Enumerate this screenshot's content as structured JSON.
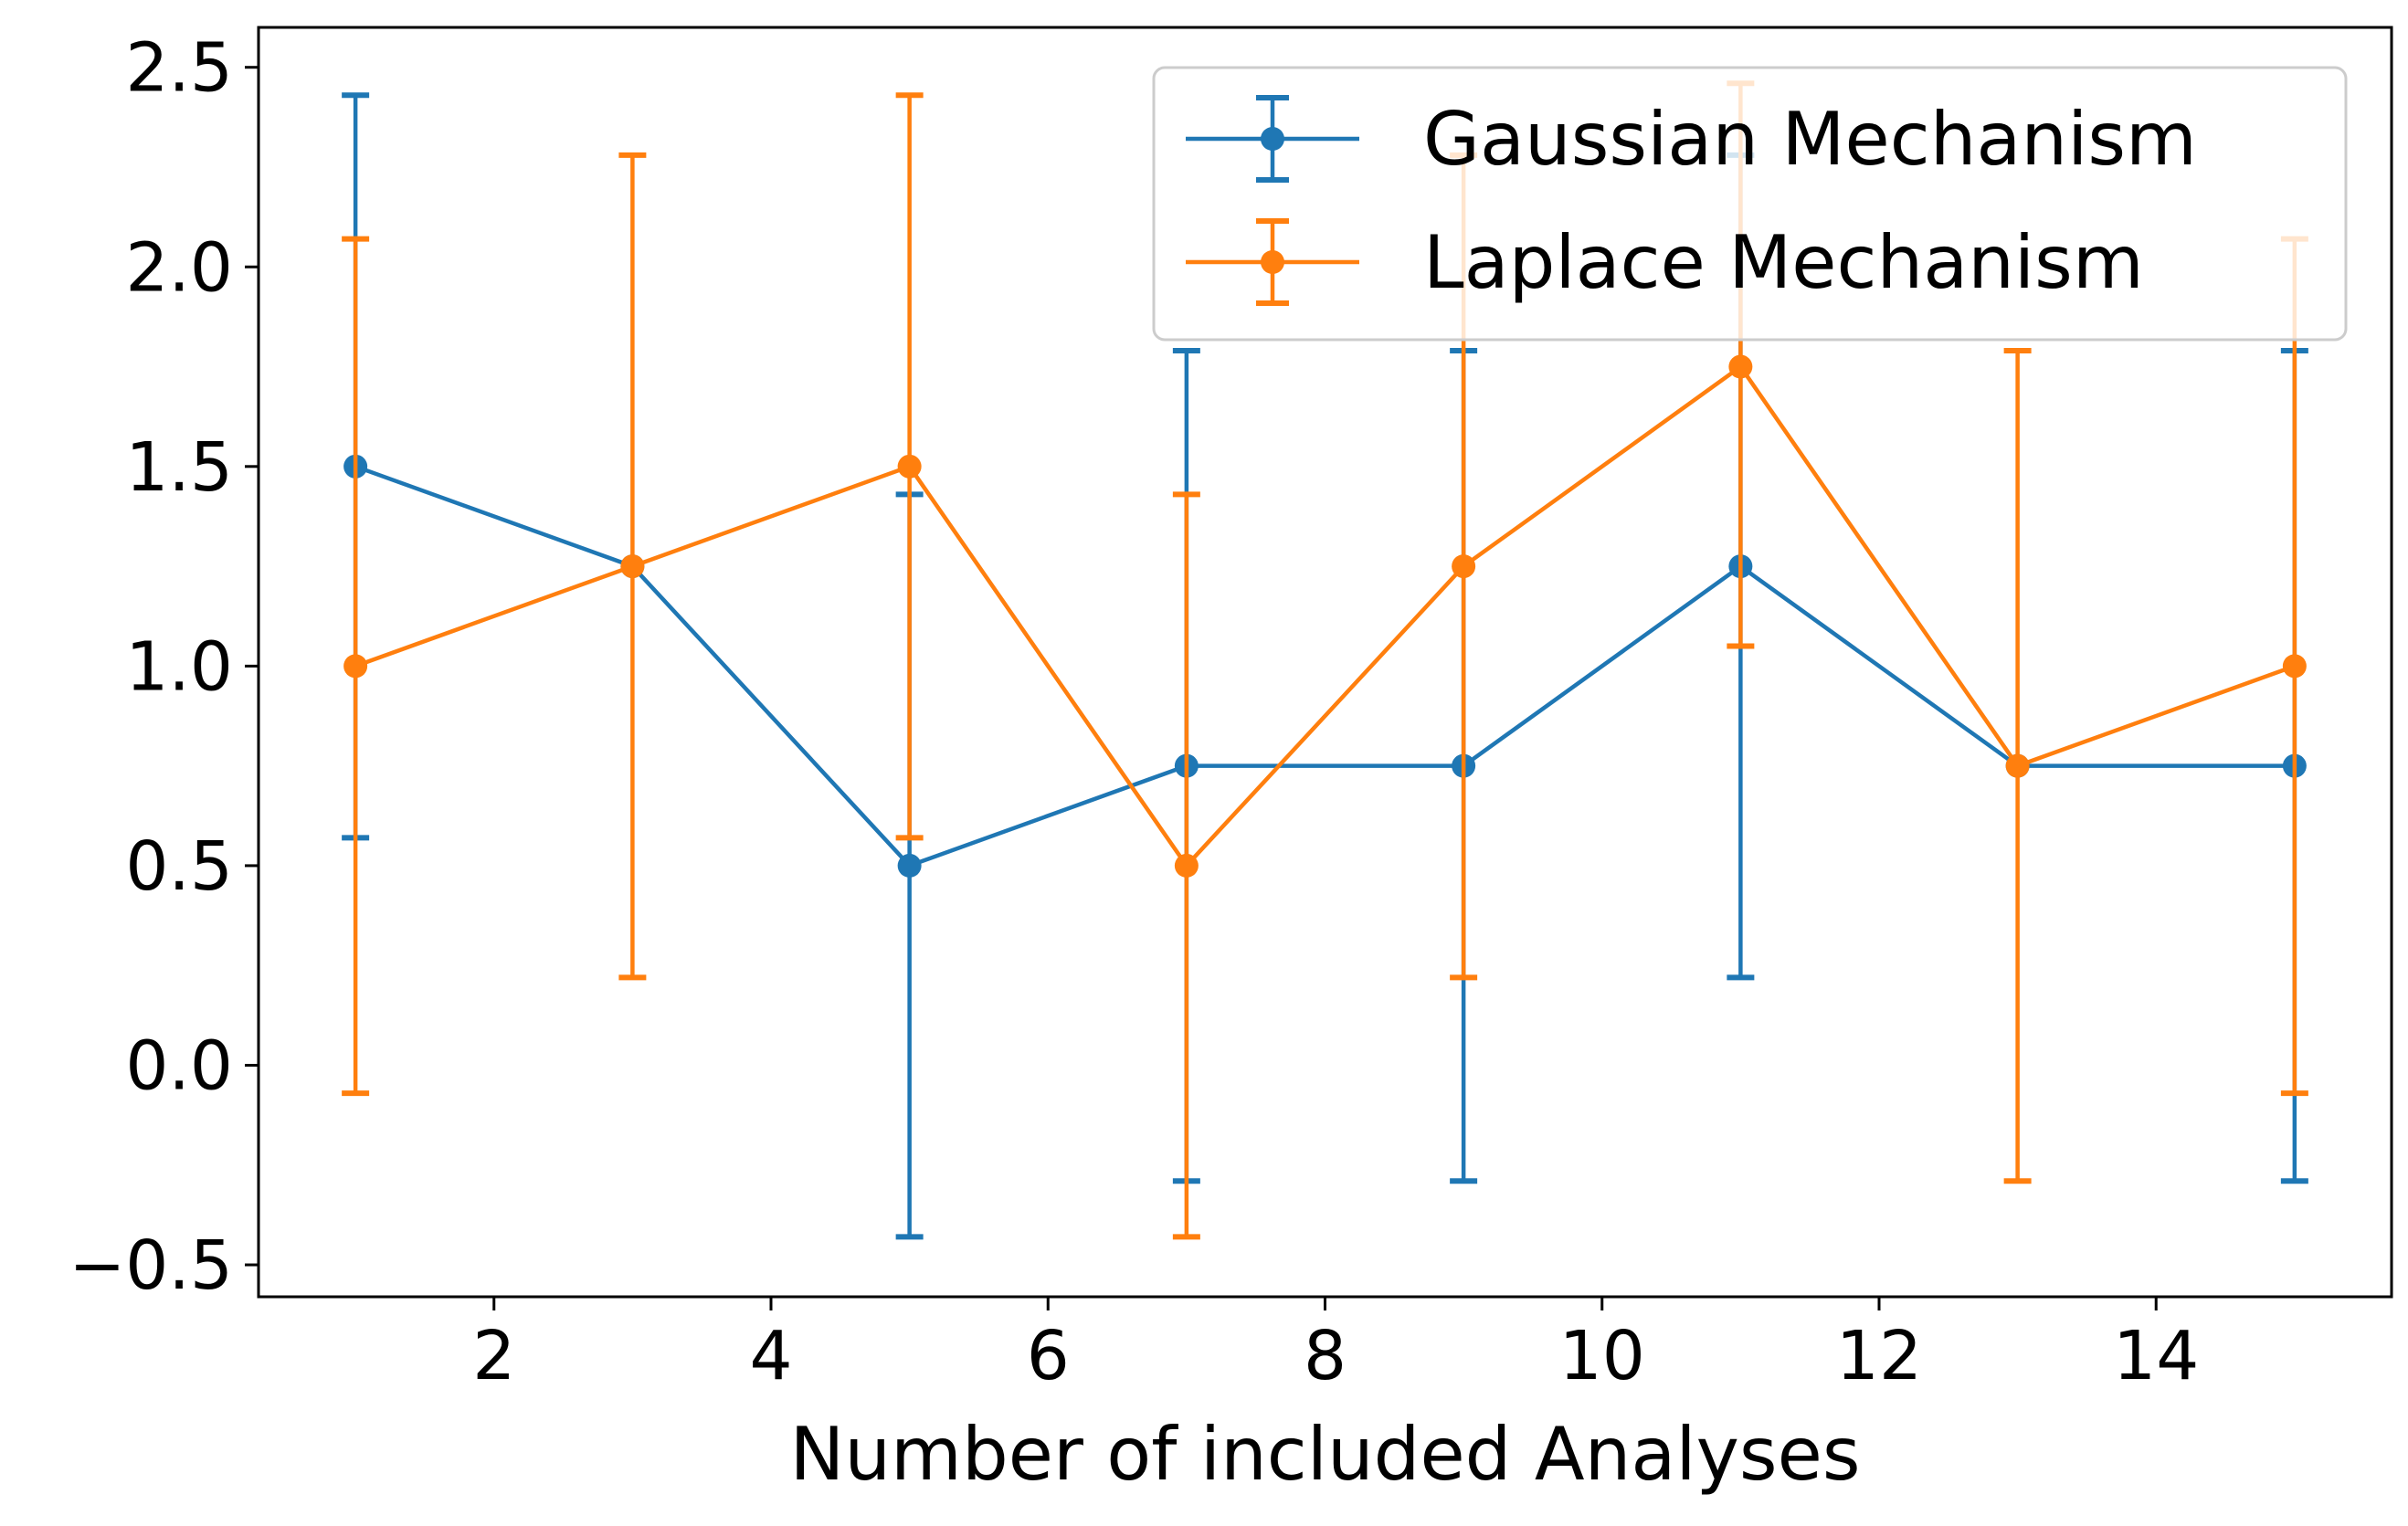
{
  "chart_data": {
    "type": "line",
    "title": "",
    "xlabel": "Number of included Analyses",
    "ylabel": "",
    "xlim": [
      0.3,
      15.7
    ],
    "ylim": [
      -0.58,
      2.6
    ],
    "xticks": [
      2,
      4,
      6,
      8,
      10,
      12,
      14
    ],
    "yticks": [
      -0.5,
      0.0,
      0.5,
      1.0,
      1.5,
      2.0,
      2.5
    ],
    "ytick_labels": [
      "−0.5",
      "0.0",
      "0.5",
      "1.0",
      "1.5",
      "2.0",
      "2.5"
    ],
    "grid": false,
    "legend_position": "top-right",
    "error_bars": true,
    "series": [
      {
        "name": "Gaussian Mechanism",
        "color": "#1f77b4",
        "x": [
          1,
          3,
          5,
          7,
          9,
          11,
          13,
          15
        ],
        "y": [
          1.5,
          1.25,
          0.5,
          0.75,
          0.75,
          1.25,
          0.75,
          0.75
        ],
        "err_low": [
          0.57,
          1.25,
          -0.43,
          -0.29,
          -0.29,
          0.22,
          0.75,
          -0.29
        ],
        "err_high": [
          2.43,
          1.25,
          1.43,
          1.79,
          1.79,
          2.28,
          0.75,
          1.79
        ]
      },
      {
        "name": "Laplace Mechanism",
        "color": "#ff7f0e",
        "x": [
          1,
          3,
          5,
          7,
          9,
          11,
          13,
          15
        ],
        "y": [
          1.0,
          1.25,
          1.5,
          0.5,
          1.25,
          1.75,
          0.75,
          1.0
        ],
        "err_low": [
          -0.07,
          0.22,
          0.57,
          -0.43,
          0.22,
          1.05,
          -0.29,
          -0.07
        ],
        "err_high": [
          2.07,
          2.28,
          2.43,
          1.43,
          2.28,
          2.46,
          1.79,
          2.07
        ]
      }
    ]
  }
}
